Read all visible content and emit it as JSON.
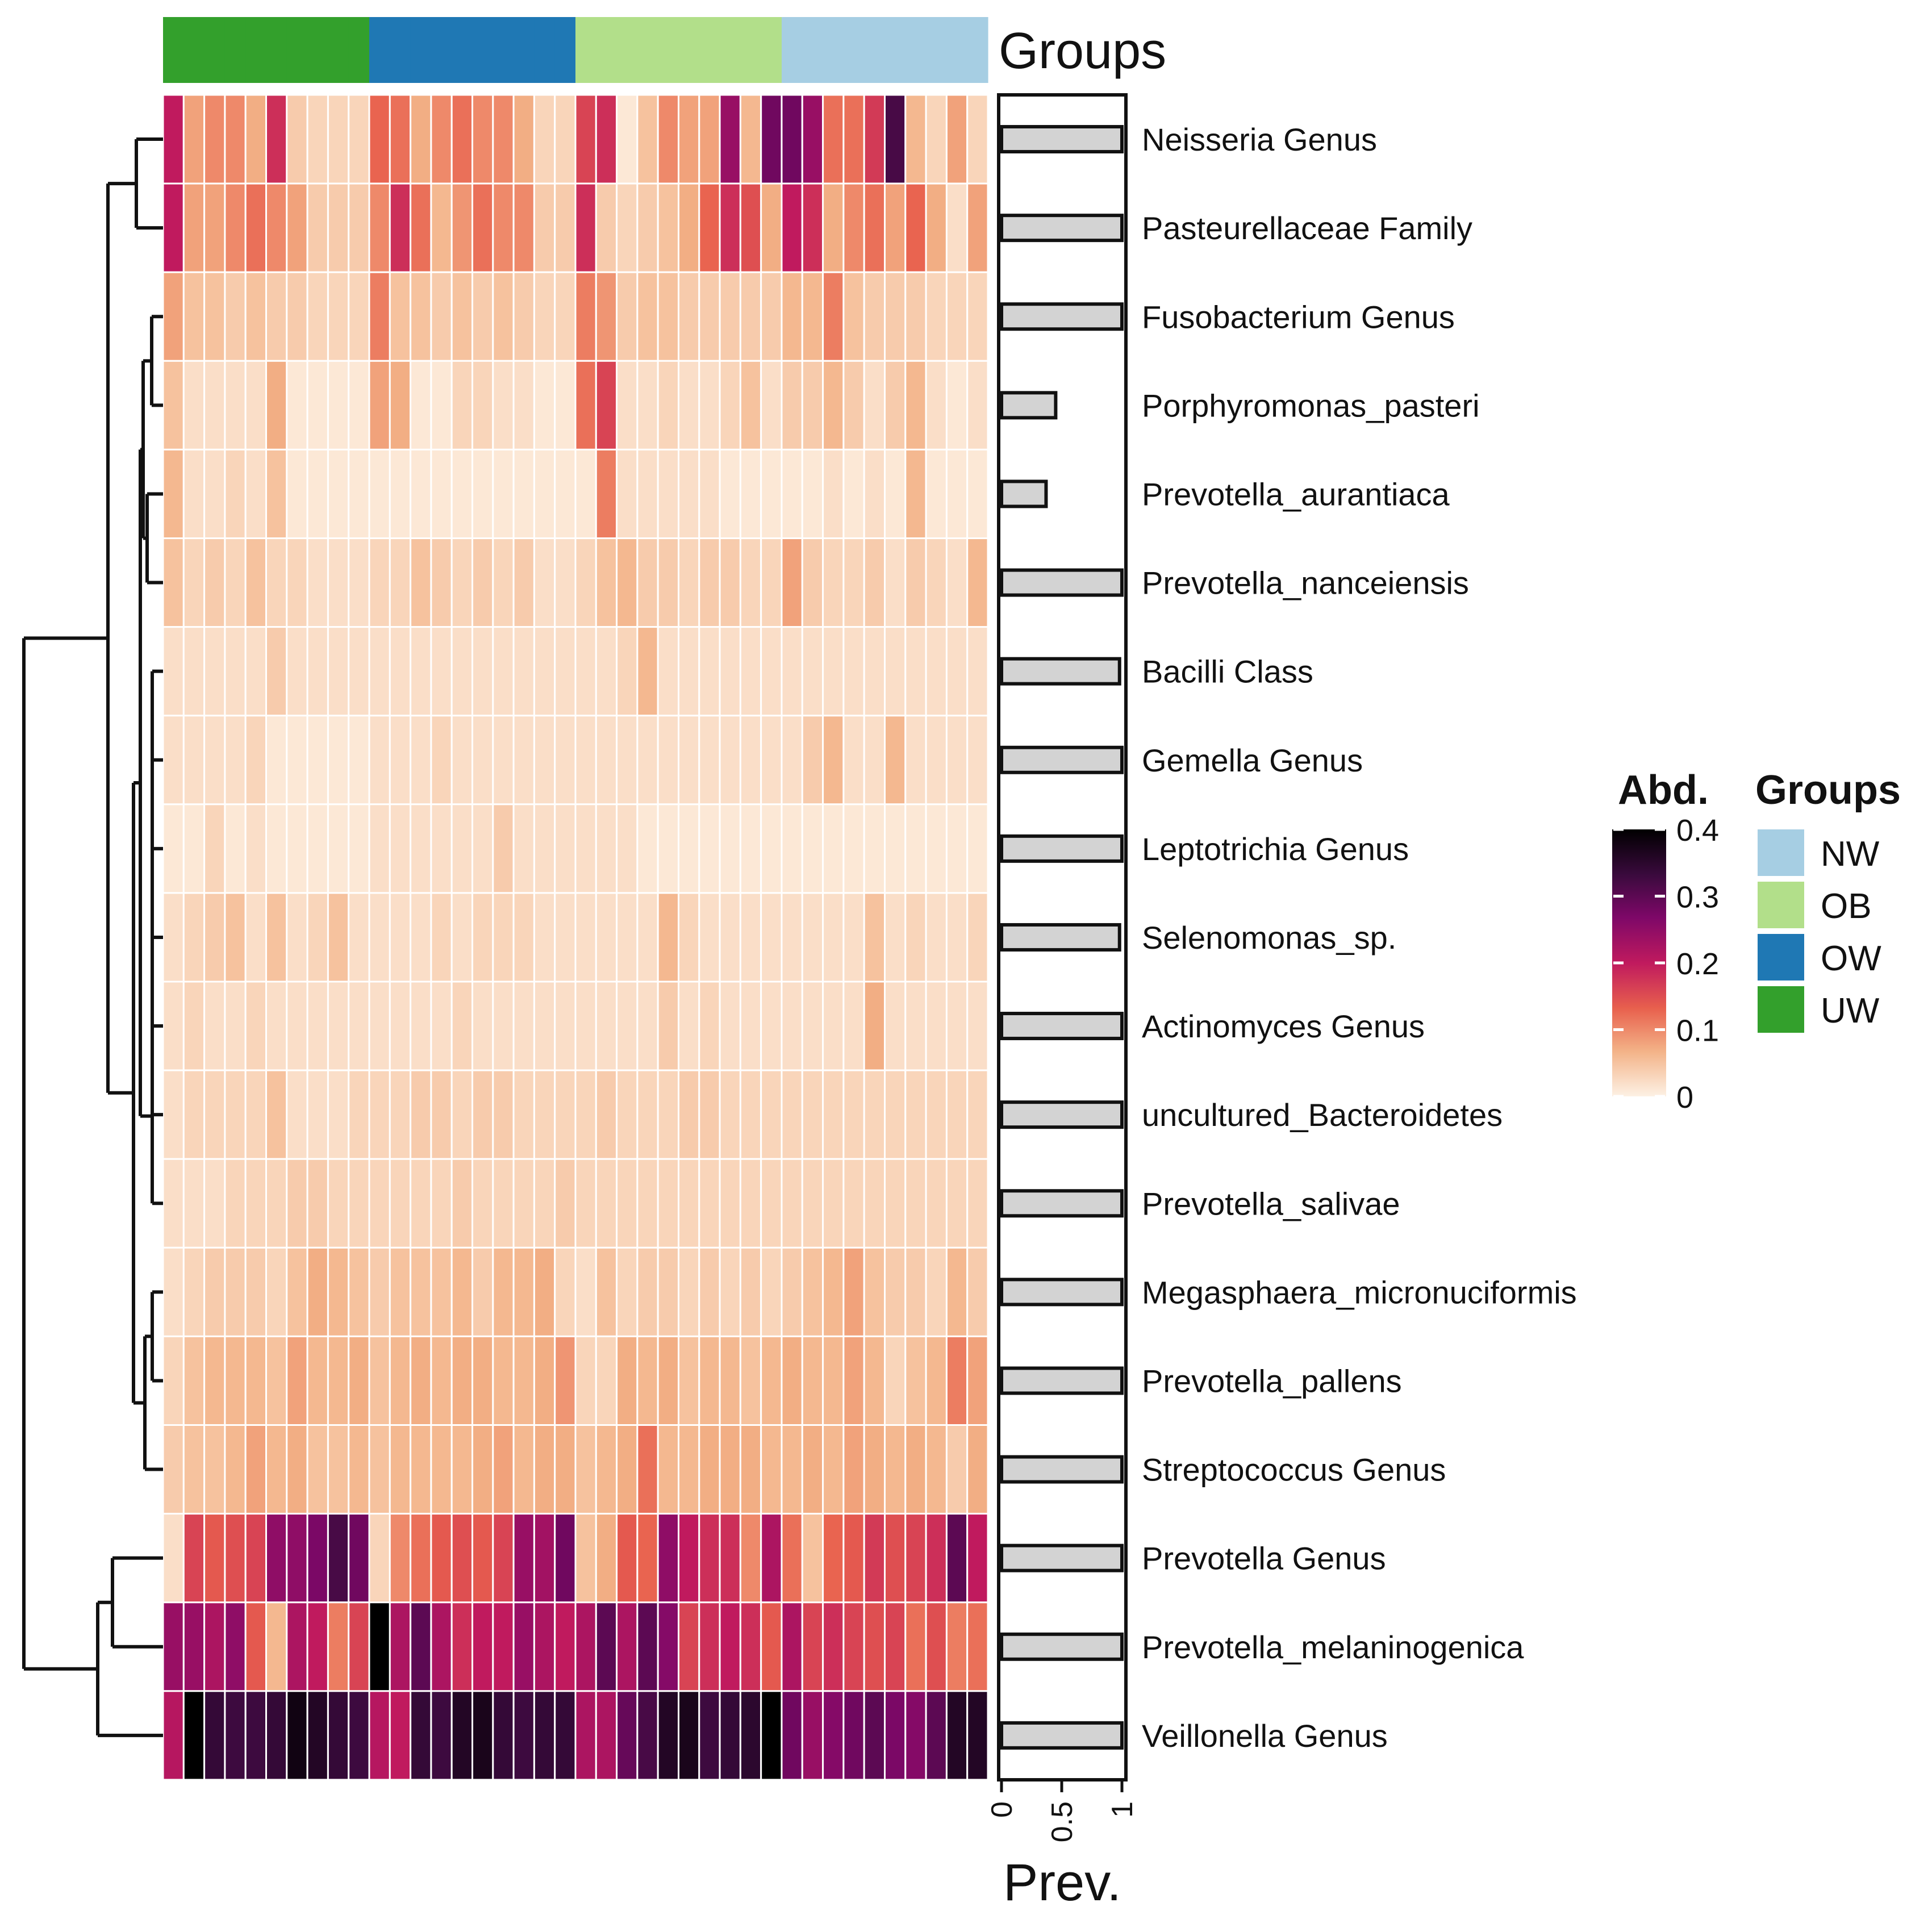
{
  "chart_data": {
    "type": "heatmap",
    "annotation_title": "Groups",
    "row_labels": [
      "Neisseria Genus",
      "Pasteurellaceae Family",
      "Fusobacterium Genus",
      "Porphyromonas_pasteri",
      "Prevotella_aurantiaca",
      "Prevotella_nanceiensis",
      "Bacilli Class",
      "Gemella Genus",
      "Leptotrichia Genus",
      "Selenomonas_sp.",
      "Actinomyces Genus",
      "uncultured_Bacteroidetes",
      "Prevotella_salivae",
      "Megasphaera_micronuciformis",
      "Prevotella_pallens",
      "Streptococcus Genus",
      "Prevotella Genus",
      "Prevotella_melaninogenica",
      "Veillonella Genus"
    ],
    "column_groups": [
      "UW",
      "UW",
      "UW",
      "UW",
      "UW",
      "UW",
      "UW",
      "UW",
      "UW",
      "UW",
      "OW",
      "OW",
      "OW",
      "OW",
      "OW",
      "OW",
      "OW",
      "OW",
      "OW",
      "OW",
      "OB",
      "OB",
      "OB",
      "OB",
      "OB",
      "OB",
      "OB",
      "OB",
      "OB",
      "OB",
      "NW",
      "NW",
      "NW",
      "NW",
      "NW",
      "NW",
      "NW",
      "NW",
      "NW",
      "NW"
    ],
    "values": [
      [
        0.2,
        0.08,
        0.1,
        0.1,
        0.07,
        0.18,
        0.04,
        0.03,
        0.03,
        0.03,
        0.13,
        0.12,
        0.07,
        0.1,
        0.12,
        0.1,
        0.1,
        0.07,
        0.03,
        0.03,
        0.16,
        0.18,
        0.01,
        0.05,
        0.1,
        0.08,
        0.08,
        0.24,
        0.06,
        0.28,
        0.28,
        0.24,
        0.12,
        0.12,
        0.17,
        0.32,
        0.06,
        0.03,
        0.08,
        0.03
      ],
      [
        0.2,
        0.08,
        0.08,
        0.1,
        0.12,
        0.1,
        0.08,
        0.04,
        0.04,
        0.04,
        0.1,
        0.18,
        0.12,
        0.06,
        0.09,
        0.12,
        0.1,
        0.1,
        0.04,
        0.04,
        0.18,
        0.04,
        0.03,
        0.04,
        0.05,
        0.07,
        0.13,
        0.18,
        0.15,
        0.07,
        0.2,
        0.18,
        0.07,
        0.1,
        0.12,
        0.08,
        0.13,
        0.07,
        0.02,
        0.08
      ],
      [
        0.08,
        0.05,
        0.05,
        0.04,
        0.05,
        0.04,
        0.04,
        0.03,
        0.03,
        0.03,
        0.11,
        0.05,
        0.05,
        0.04,
        0.05,
        0.04,
        0.05,
        0.04,
        0.03,
        0.03,
        0.11,
        0.09,
        0.04,
        0.05,
        0.05,
        0.04,
        0.04,
        0.04,
        0.04,
        0.04,
        0.06,
        0.06,
        0.11,
        0.05,
        0.04,
        0.04,
        0.04,
        0.03,
        0.03,
        0.03
      ],
      [
        0.05,
        0.02,
        0.02,
        0.02,
        0.02,
        0.07,
        0.01,
        0.01,
        0.01,
        0.01,
        0.08,
        0.07,
        0.01,
        0.01,
        0.03,
        0.03,
        0.02,
        0.02,
        0.01,
        0.01,
        0.12,
        0.16,
        0.02,
        0.02,
        0.03,
        0.02,
        0.02,
        0.03,
        0.05,
        0.02,
        0.04,
        0.04,
        0.06,
        0.04,
        0.02,
        0.04,
        0.06,
        0.02,
        0.01,
        0.02
      ],
      [
        0.06,
        0.02,
        0.02,
        0.03,
        0.02,
        0.05,
        0.01,
        0.01,
        0.01,
        0.01,
        0.01,
        0.01,
        0.01,
        0.01,
        0.01,
        0.01,
        0.01,
        0.01,
        0.01,
        0.01,
        0.01,
        0.11,
        0.02,
        0.02,
        0.02,
        0.02,
        0.02,
        0.01,
        0.01,
        0.01,
        0.01,
        0.01,
        0.02,
        0.01,
        0.02,
        0.01,
        0.06,
        0.01,
        0.01,
        0.01
      ],
      [
        0.05,
        0.03,
        0.04,
        0.03,
        0.05,
        0.03,
        0.03,
        0.02,
        0.02,
        0.02,
        0.03,
        0.03,
        0.05,
        0.04,
        0.03,
        0.04,
        0.03,
        0.04,
        0.02,
        0.02,
        0.03,
        0.05,
        0.06,
        0.04,
        0.04,
        0.03,
        0.04,
        0.04,
        0.03,
        0.03,
        0.08,
        0.04,
        0.03,
        0.03,
        0.04,
        0.02,
        0.04,
        0.03,
        0.02,
        0.06
      ],
      [
        0.02,
        0.02,
        0.02,
        0.02,
        0.02,
        0.04,
        0.02,
        0.02,
        0.02,
        0.02,
        0.02,
        0.02,
        0.02,
        0.02,
        0.02,
        0.02,
        0.02,
        0.02,
        0.02,
        0.02,
        0.02,
        0.02,
        0.03,
        0.06,
        0.02,
        0.02,
        0.02,
        0.02,
        0.02,
        0.02,
        0.02,
        0.02,
        0.02,
        0.02,
        0.02,
        0.02,
        0.02,
        0.02,
        0.02,
        0.02
      ],
      [
        0.02,
        0.02,
        0.02,
        0.02,
        0.03,
        0.01,
        0.01,
        0.01,
        0.01,
        0.01,
        0.02,
        0.02,
        0.02,
        0.03,
        0.02,
        0.02,
        0.02,
        0.02,
        0.02,
        0.02,
        0.02,
        0.02,
        0.02,
        0.02,
        0.02,
        0.02,
        0.02,
        0.02,
        0.02,
        0.02,
        0.02,
        0.04,
        0.06,
        0.02,
        0.02,
        0.06,
        0.02,
        0.02,
        0.02,
        0.02
      ],
      [
        0.01,
        0.01,
        0.03,
        0.01,
        0.02,
        0.01,
        0.01,
        0.01,
        0.01,
        0.01,
        0.02,
        0.02,
        0.02,
        0.02,
        0.02,
        0.02,
        0.04,
        0.02,
        0.02,
        0.02,
        0.02,
        0.02,
        0.02,
        0.01,
        0.01,
        0.01,
        0.01,
        0.01,
        0.01,
        0.01,
        0.01,
        0.01,
        0.01,
        0.01,
        0.01,
        0.01,
        0.01,
        0.01,
        0.01,
        0.01
      ],
      [
        0.02,
        0.03,
        0.04,
        0.05,
        0.02,
        0.05,
        0.02,
        0.03,
        0.05,
        0.02,
        0.02,
        0.02,
        0.02,
        0.03,
        0.02,
        0.03,
        0.03,
        0.03,
        0.02,
        0.02,
        0.02,
        0.02,
        0.02,
        0.02,
        0.06,
        0.03,
        0.02,
        0.02,
        0.02,
        0.02,
        0.02,
        0.02,
        0.02,
        0.02,
        0.05,
        0.02,
        0.03,
        0.02,
        0.02,
        0.03
      ],
      [
        0.02,
        0.03,
        0.02,
        0.02,
        0.03,
        0.02,
        0.02,
        0.02,
        0.02,
        0.02,
        0.02,
        0.02,
        0.02,
        0.02,
        0.03,
        0.02,
        0.02,
        0.02,
        0.02,
        0.02,
        0.02,
        0.02,
        0.02,
        0.02,
        0.04,
        0.02,
        0.03,
        0.02,
        0.02,
        0.02,
        0.02,
        0.02,
        0.02,
        0.02,
        0.07,
        0.02,
        0.02,
        0.02,
        0.02,
        0.02
      ],
      [
        0.02,
        0.03,
        0.03,
        0.03,
        0.03,
        0.05,
        0.02,
        0.02,
        0.02,
        0.03,
        0.03,
        0.03,
        0.04,
        0.04,
        0.03,
        0.04,
        0.04,
        0.03,
        0.03,
        0.03,
        0.03,
        0.04,
        0.03,
        0.03,
        0.03,
        0.04,
        0.04,
        0.03,
        0.03,
        0.03,
        0.03,
        0.03,
        0.03,
        0.03,
        0.03,
        0.03,
        0.03,
        0.03,
        0.03,
        0.03
      ],
      [
        0.02,
        0.02,
        0.02,
        0.03,
        0.03,
        0.03,
        0.04,
        0.04,
        0.03,
        0.03,
        0.03,
        0.03,
        0.03,
        0.03,
        0.04,
        0.03,
        0.03,
        0.03,
        0.03,
        0.04,
        0.03,
        0.03,
        0.03,
        0.03,
        0.03,
        0.03,
        0.03,
        0.03,
        0.03,
        0.03,
        0.03,
        0.03,
        0.03,
        0.03,
        0.03,
        0.03,
        0.03,
        0.03,
        0.03,
        0.03
      ],
      [
        0.02,
        0.03,
        0.04,
        0.04,
        0.04,
        0.03,
        0.05,
        0.07,
        0.06,
        0.05,
        0.04,
        0.05,
        0.05,
        0.05,
        0.06,
        0.04,
        0.06,
        0.06,
        0.07,
        0.03,
        0.02,
        0.05,
        0.03,
        0.04,
        0.04,
        0.03,
        0.04,
        0.03,
        0.04,
        0.03,
        0.04,
        0.05,
        0.06,
        0.08,
        0.05,
        0.04,
        0.04,
        0.03,
        0.06,
        0.04
      ],
      [
        0.03,
        0.05,
        0.06,
        0.06,
        0.06,
        0.05,
        0.08,
        0.06,
        0.06,
        0.07,
        0.05,
        0.06,
        0.07,
        0.06,
        0.07,
        0.07,
        0.06,
        0.06,
        0.07,
        0.09,
        0.03,
        0.03,
        0.07,
        0.06,
        0.07,
        0.05,
        0.06,
        0.06,
        0.05,
        0.06,
        0.07,
        0.06,
        0.06,
        0.08,
        0.06,
        0.03,
        0.05,
        0.06,
        0.11,
        0.08
      ],
      [
        0.04,
        0.05,
        0.05,
        0.06,
        0.08,
        0.06,
        0.07,
        0.05,
        0.05,
        0.06,
        0.05,
        0.06,
        0.06,
        0.06,
        0.06,
        0.07,
        0.08,
        0.06,
        0.07,
        0.07,
        0.05,
        0.06,
        0.07,
        0.12,
        0.06,
        0.06,
        0.07,
        0.07,
        0.07,
        0.06,
        0.06,
        0.07,
        0.06,
        0.08,
        0.07,
        0.06,
        0.07,
        0.06,
        0.04,
        0.07
      ],
      [
        0.02,
        0.16,
        0.14,
        0.15,
        0.16,
        0.25,
        0.25,
        0.27,
        0.32,
        0.28,
        0.03,
        0.1,
        0.12,
        0.14,
        0.15,
        0.14,
        0.16,
        0.24,
        0.23,
        0.28,
        0.05,
        0.07,
        0.14,
        0.13,
        0.25,
        0.2,
        0.18,
        0.18,
        0.1,
        0.22,
        0.12,
        0.05,
        0.13,
        0.14,
        0.17,
        0.15,
        0.16,
        0.18,
        0.3,
        0.2
      ],
      [
        0.24,
        0.24,
        0.22,
        0.25,
        0.14,
        0.06,
        0.22,
        0.2,
        0.11,
        0.16,
        0.4,
        0.22,
        0.3,
        0.22,
        0.18,
        0.2,
        0.2,
        0.24,
        0.22,
        0.2,
        0.22,
        0.3,
        0.22,
        0.3,
        0.26,
        0.16,
        0.18,
        0.2,
        0.18,
        0.14,
        0.22,
        0.16,
        0.18,
        0.16,
        0.15,
        0.16,
        0.12,
        0.15,
        0.11,
        0.12
      ],
      [
        0.21,
        0.42,
        0.34,
        0.33,
        0.33,
        0.34,
        0.38,
        0.36,
        0.34,
        0.33,
        0.21,
        0.2,
        0.34,
        0.33,
        0.36,
        0.37,
        0.34,
        0.33,
        0.34,
        0.34,
        0.22,
        0.22,
        0.29,
        0.32,
        0.36,
        0.37,
        0.33,
        0.34,
        0.35,
        0.42,
        0.28,
        0.24,
        0.26,
        0.28,
        0.3,
        0.27,
        0.26,
        0.3,
        0.36,
        0.36
      ]
    ],
    "prevalence": [
      1.0,
      1.0,
      1.0,
      0.45,
      0.37,
      1.0,
      0.98,
      1.0,
      1.0,
      0.98,
      1.0,
      1.0,
      1.0,
      1.0,
      1.0,
      1.0,
      1.0,
      1.0,
      1.0
    ],
    "prevalence_axis": {
      "title": "Prev.",
      "ticks": [
        "0",
        "0.5",
        "1"
      ],
      "range": [
        0,
        1
      ]
    },
    "color_scale": {
      "title": "Abd.",
      "range": [
        0,
        0.4
      ],
      "ticks": [
        "0.4",
        "0.3",
        "0.2",
        "0.1",
        "0"
      ],
      "stops": [
        "#FDF1E4",
        "#F3B287",
        "#E8604D",
        "#C01A5E",
        "#7E0868",
        "#3A0A3D",
        "#000000"
      ]
    },
    "group_legend": {
      "title": "Groups",
      "items": [
        {
          "label": "NW",
          "color": "#A6CEE3"
        },
        {
          "label": "OB",
          "color": "#B2DF8A"
        },
        {
          "label": "OW",
          "color": "#1F78B4"
        },
        {
          "label": "UW",
          "color": "#33A02C"
        }
      ]
    },
    "dendrogram": "hierarchical clustering of rows (left)"
  }
}
